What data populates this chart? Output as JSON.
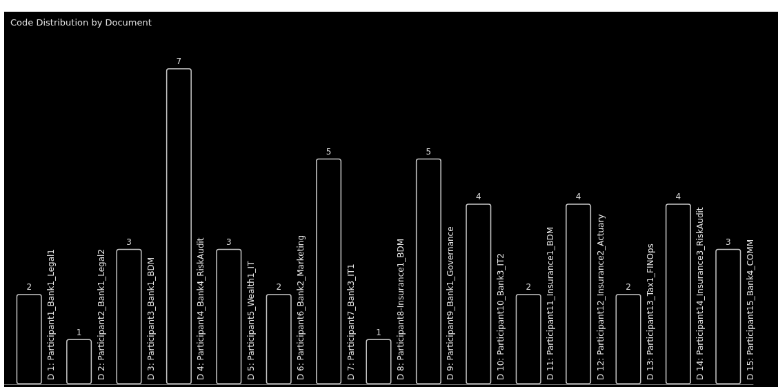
{
  "chart_data": {
    "type": "bar",
    "title": "Code Distribution by Document",
    "categories": [
      "D 1: Participant1_Bank1_Legal1",
      "D 2: Participant2_Bank1_Legal2",
      "D 3: Participant3_Bank1_BDM",
      "D 4: Participant4_Bank4_RiskAudit",
      "D 5: Participant5_Wealth1_IT",
      "D 6: Participant6_Bank2_Marketing",
      "D 7: Participant7_Bank3_IT1",
      "D 8: Participant8-Insurance1_BDM",
      "D 9: Participant9_Bank1_Governance",
      "D 10: Participant10_Bank3_IT2",
      "D 11: Participant11_Insurance1_BDM",
      "D 12: Participant12_Insurance2_Actuary",
      "D 13: Participant13_Tax1_FINOps",
      "D 14: Participant14_Insurance3_RiskAudit",
      "D 15: Participant15_Bank4_COMM"
    ],
    "values": [
      2,
      1,
      3,
      7,
      3,
      2,
      5,
      1,
      5,
      4,
      2,
      4,
      2,
      4,
      3
    ],
    "color": "#c8c8c8",
    "data_labels": true,
    "grid": false
  }
}
